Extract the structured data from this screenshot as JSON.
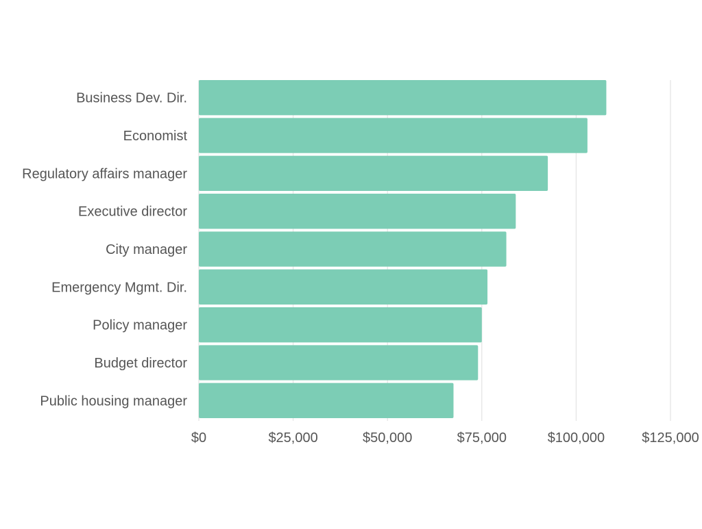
{
  "chart_data": {
    "type": "bar",
    "orientation": "horizontal",
    "title": "",
    "xlabel": "",
    "ylabel": "",
    "categories": [
      "Business Dev. Dir.",
      "Economist",
      "Regulatory affairs manager",
      "Executive director",
      "City manager",
      "Emergency Mgmt. Dir.",
      "Policy manager",
      "Budget director",
      "Public housing manager"
    ],
    "values": [
      108000,
      103000,
      92500,
      84000,
      81500,
      76500,
      75000,
      74000,
      67500
    ],
    "xlim": [
      0,
      125000
    ],
    "x_ticks": [
      0,
      25000,
      50000,
      75000,
      100000,
      125000
    ],
    "x_tick_labels": [
      "$0",
      "$25,000",
      "$50,000",
      "$75,000",
      "$100,000",
      "$125,000"
    ],
    "grid": "vertical",
    "legend": "none",
    "bar_color": "#7ccdb5",
    "grid_color": "#e3e3e3",
    "text_color": "#555555"
  }
}
